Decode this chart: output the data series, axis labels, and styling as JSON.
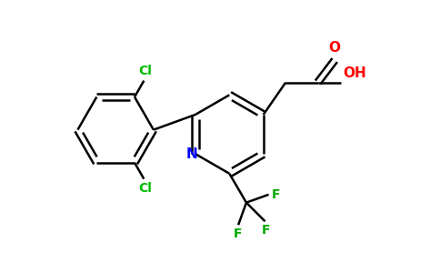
{
  "bg_color": "#ffffff",
  "bond_color": "#000000",
  "cl_color": "#00bb00",
  "n_color": "#0000ff",
  "o_color": "#ff0000",
  "f_color": "#00aa00",
  "lw": 1.8,
  "figsize": [
    4.84,
    3.0
  ],
  "dpi": 100,
  "xlim": [
    0,
    9.68
  ],
  "ylim": [
    0,
    6.0
  ]
}
